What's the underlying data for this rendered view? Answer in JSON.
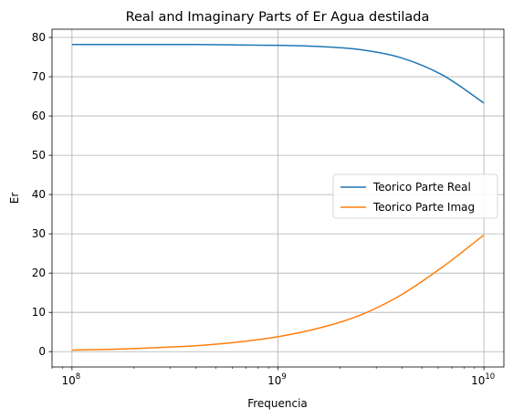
{
  "chart_data": {
    "type": "line",
    "title": "Real and Imaginary Parts of Er Agua destilada",
    "xlabel": "Frequencia",
    "ylabel": "Er",
    "xscale": "log",
    "xlim": [
      80000000,
      12500000000
    ],
    "ylim": [
      -3.9,
      82.1
    ],
    "grid": true,
    "legend_position": "center-right",
    "x_ticks": [
      {
        "value": 100000000,
        "base": "10",
        "exp": "8"
      },
      {
        "value": 1000000000,
        "base": "10",
        "exp": "9"
      },
      {
        "value": 10000000000,
        "base": "10",
        "exp": "10"
      }
    ],
    "y_ticks": [
      0,
      10,
      20,
      30,
      40,
      50,
      60,
      70,
      80
    ],
    "series": [
      {
        "name": "Teorico Parte Real",
        "color": "#1f77b4",
        "x": [
          100000000,
          158000000,
          251000000,
          398000000,
          631000000,
          1000000000,
          1585000000,
          2512000000,
          3981000000,
          6310000000,
          10000000000
        ],
        "y": [
          78.2,
          78.2,
          78.2,
          78.2,
          78.1,
          78.0,
          77.7,
          76.9,
          74.8,
          70.4,
          63.3
        ]
      },
      {
        "name": "Teorico Parte Imag",
        "color": "#ff7f0e",
        "x": [
          100000000,
          158000000,
          251000000,
          398000000,
          631000000,
          1000000000,
          1585000000,
          2512000000,
          3981000000,
          6310000000,
          10000000000
        ],
        "y": [
          0.4,
          0.6,
          1.0,
          1.5,
          2.4,
          3.8,
          6.0,
          9.3,
          14.5,
          21.6,
          29.7
        ]
      }
    ]
  }
}
